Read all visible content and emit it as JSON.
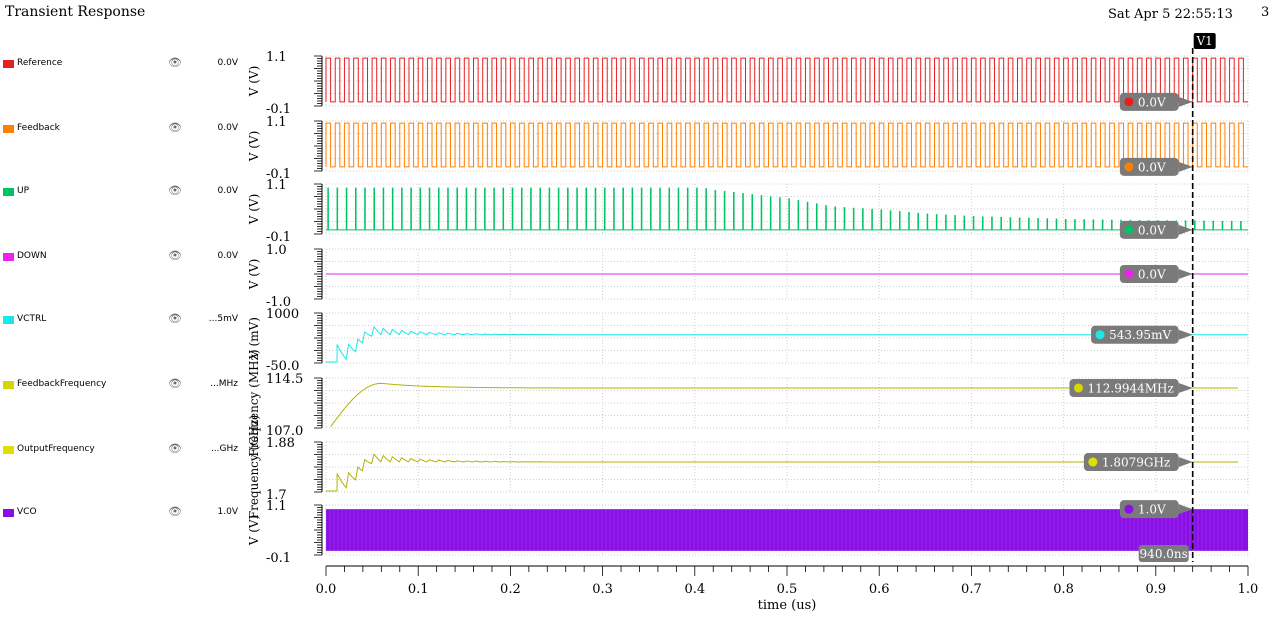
{
  "header": {
    "title": "Transient Response",
    "datetime": "Sat Apr 5 22:55:13 2025",
    "page_num": "3"
  },
  "icons": {
    "visibility": "eye-icon"
  },
  "legend": [
    {
      "name": "Reference",
      "value": "0.0V",
      "color": "#e81f1f"
    },
    {
      "name": "Feedback",
      "value": "0.0V",
      "color": "#ff7f00"
    },
    {
      "name": "UP",
      "value": "0.0V",
      "color": "#00c364"
    },
    {
      "name": "DOWN",
      "value": "0.0V",
      "color": "#ee22ee"
    },
    {
      "name": "VCTRL",
      "value": "...5mV",
      "color": "#18e8e8"
    },
    {
      "name": "FeedbackFrequency",
      "value": "...MHz",
      "color": "#d6d600"
    },
    {
      "name": "OutputFrequency",
      "value": "...GHz",
      "color": "#e0e000"
    },
    {
      "name": "VCO",
      "value": "1.0V",
      "color": "#8a0ee6"
    }
  ],
  "chart_data": {
    "type": "line",
    "x": {
      "label": "time (us)",
      "range": [
        0,
        1.0
      ],
      "ticks": [
        "0.0",
        "0.1",
        "0.2",
        "0.3",
        "0.4",
        "0.5",
        "0.6",
        "0.7",
        "0.8",
        "0.9",
        "1.0"
      ]
    },
    "cursor": {
      "name": "V1",
      "x": 0.94,
      "label": "940.0ns"
    },
    "grid": true,
    "panels": [
      {
        "name": "Reference",
        "ylabel": "V (V)",
        "ymax_label": "1.1",
        "ymin_label": "-0.1",
        "ylim": [
          -0.1,
          1.1
        ],
        "color": "#e81f1f",
        "kind": "square",
        "high": 1.05,
        "low": 0.0,
        "period_ns": 10,
        "y_at_cursor": 0.0,
        "marker_label": "0.0V"
      },
      {
        "name": "Feedback",
        "ylabel": "V (V)",
        "ymax_label": "1.1",
        "ymin_label": "-0.1",
        "ylim": [
          -0.1,
          1.1
        ],
        "color": "#ff7f00",
        "kind": "square",
        "high": 1.05,
        "low": 0.0,
        "period_ns": 10,
        "y_at_cursor": 0.0,
        "marker_label": "0.0V"
      },
      {
        "name": "UP",
        "ylabel": "V (V)",
        "ymax_label": "1.1",
        "ymin_label": "-0.1",
        "ylim": [
          -0.1,
          1.1
        ],
        "color": "#00c364",
        "kind": "pulses",
        "pulse_peaks": [
          [
            0.0,
            1.0
          ],
          [
            0.41,
            1.0
          ],
          [
            0.42,
            0.95
          ],
          [
            0.5,
            0.75
          ],
          [
            0.55,
            0.55
          ],
          [
            0.6,
            0.48
          ],
          [
            0.65,
            0.38
          ],
          [
            0.7,
            0.32
          ],
          [
            0.8,
            0.25
          ],
          [
            0.9,
            0.22
          ],
          [
            0.99,
            0.2
          ]
        ],
        "period_ns": 10,
        "y_at_cursor": 0.0,
        "marker_label": "0.0V"
      },
      {
        "name": "DOWN",
        "ylabel": "V (V)",
        "ymax_label": "1.0",
        "ymin_label": "-1.0",
        "ylim": [
          -1.0,
          1.0
        ],
        "color": "#ee22ee",
        "kind": "constant",
        "level": 0.0,
        "y_at_cursor": 0.0,
        "marker_label": "0.0V"
      },
      {
        "name": "VCTRL",
        "ylabel": "V (mV)",
        "ymax_label": "1000",
        "ymin_label": "-50.0",
        "ylim": [
          -50,
          1000
        ],
        "color": "#18e8e8",
        "kind": "ringing",
        "final": 543.95,
        "x_end": 1.0,
        "y_at_cursor": 543.95,
        "marker_label": "543.95mV"
      },
      {
        "name": "FeedbackFrequency",
        "ylabel": "Frequency (MHz)",
        "ymax_label": "114.5",
        "ymin_label": "107.0",
        "ylim": [
          107.0,
          114.5
        ],
        "color": "#b3b300",
        "kind": "overshoot",
        "start": 107.2,
        "peak": 113.7,
        "peak_x": 0.06,
        "final": 112.9944,
        "x_end": 0.99,
        "y_at_cursor": 112.9944,
        "marker_label": "112.9944MHz"
      },
      {
        "name": "OutputFrequency",
        "ylabel": "Frequency (GHz)",
        "ymax_label": "1.88",
        "ymin_label": "1.7",
        "ylim": [
          1.7,
          1.88
        ],
        "color": "#b3b300",
        "kind": "ringing",
        "final": 1.8079,
        "x_end": 0.99,
        "y_at_cursor": 1.8079,
        "marker_label": "1.8079GHz"
      },
      {
        "name": "VCO",
        "ylabel": "V (V)",
        "ymax_label": "1.1",
        "ymin_label": "-0.1",
        "ylim": [
          -0.1,
          1.1
        ],
        "color": "#8a0ee6",
        "kind": "dense",
        "high": 1.0,
        "low": 0.0,
        "y_at_cursor": 1.0,
        "marker_label": "1.0V"
      }
    ]
  }
}
